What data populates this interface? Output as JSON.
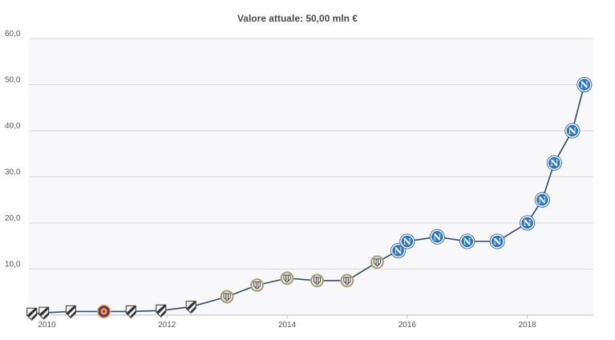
{
  "chart_data": {
    "type": "line",
    "title": "Valore attuale: 50,00 mln €",
    "xlabel": "",
    "ylabel": "",
    "xlim": [
      2009.7,
      2019.1
    ],
    "ylim": [
      0,
      60
    ],
    "y_ticks": [
      "10,0",
      "20,0",
      "30,0",
      "40,0",
      "50,0",
      "60,0"
    ],
    "x_ticks": [
      "2010",
      "2012",
      "2014",
      "2016",
      "2018"
    ],
    "grid": true,
    "line_color": "#2d4a6b",
    "plot_background": "#f8f8fa",
    "series": [
      {
        "x": [
          2009.75,
          2009.95,
          2010.4,
          2010.95,
          2011.4,
          2011.9,
          2012.4,
          2013.0,
          2013.5,
          2014.0,
          2014.5,
          2015.0,
          2015.5,
          2015.85,
          2016.0,
          2016.5,
          2017.0,
          2017.5,
          2018.0,
          2018.25,
          2018.45,
          2018.75,
          2018.95
        ],
        "values": [
          0.3,
          0.5,
          0.8,
          0.8,
          0.8,
          1.0,
          1.8,
          4.0,
          6.5,
          8.0,
          7.5,
          7.5,
          11.5,
          14.0,
          16.0,
          17.0,
          16.0,
          16.0,
          20.0,
          25.0,
          33.0,
          40.0,
          50.0
        ],
        "clubs": [
          "vasco",
          "vasco",
          "vasco",
          "other",
          "vasco",
          "vasco",
          "vasco",
          "udinese",
          "udinese",
          "udinese",
          "udinese",
          "udinese",
          "udinese",
          "napoli",
          "napoli",
          "napoli",
          "napoli",
          "napoli",
          "napoli",
          "napoli",
          "napoli",
          "napoli",
          "napoli"
        ]
      }
    ],
    "marker_colors": {
      "napoli": "#2c79c8",
      "udinese": "#e8e6da",
      "vasco": "#333333",
      "other": "#7a2a6e"
    },
    "marker_icons": {
      "napoli": "letter-n-crest-icon",
      "udinese": "striped-crest-icon",
      "vasco": "diagonal-stripe-crest-icon",
      "other": "round-crest-icon"
    }
  }
}
